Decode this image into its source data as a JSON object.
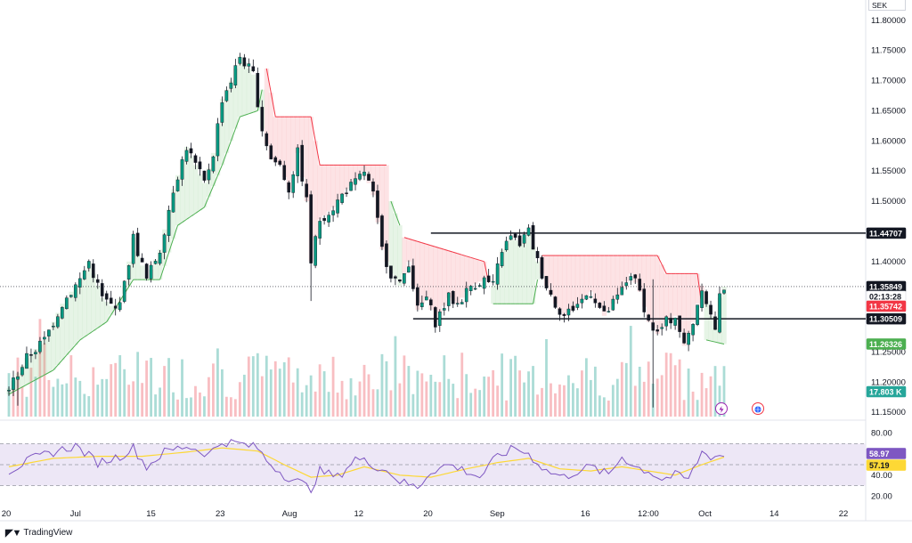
{
  "currency": "SEK",
  "brand": "TradingView",
  "brand_logo": "tradingview-logo-icon",
  "icons": [
    "lightning-icon",
    "globe-icon"
  ],
  "colors": {
    "bullish": "#089981",
    "bearish": "#f23645",
    "supertrend_up": "#4caf50",
    "supertrend_down": "#f23645",
    "rsi_line": "#7e57c2",
    "rsi_ma": "#fdd835",
    "rsi_band": "#ede7f6"
  },
  "price_labels": [
    {
      "id": "horizontal-line-upper",
      "text": "11.44707",
      "bg": "#131722",
      "fg": "#ffffff"
    },
    {
      "id": "last-price",
      "text": "11.35849",
      "bg": "#131722",
      "fg": "#ffffff"
    },
    {
      "id": "countdown",
      "text": "02:13:28",
      "bg": "#ffffff",
      "fg": "#131722"
    },
    {
      "id": "supertrend-down-value",
      "text": "11.35742",
      "bg": "#f23645",
      "fg": "#ffffff"
    },
    {
      "id": "horizontal-line-lower",
      "text": "11.30509",
      "bg": "#131722",
      "fg": "#ffffff"
    },
    {
      "id": "supertrend-up-value",
      "text": "11.26326",
      "bg": "#4caf50",
      "fg": "#ffffff"
    },
    {
      "id": "volume-value",
      "text": "17.803 K",
      "bg": "#26a69a",
      "fg": "#ffffff"
    },
    {
      "id": "rsi-value",
      "text": "58.97",
      "bg": "#7e57c2",
      "fg": "#ffffff"
    },
    {
      "id": "rsi-ma-value",
      "text": "57.19",
      "bg": "#fdd835",
      "fg": "#131722"
    }
  ],
  "chart_data": [
    {
      "type": "candlestick",
      "title": "",
      "y_axis_ticks": [
        "11.80000",
        "11.75000",
        "11.70000",
        "11.65000",
        "11.60000",
        "11.55000",
        "11.50000",
        "11.40000",
        "11.25000",
        "11.20000",
        "11.15000"
      ],
      "ylim": [
        11.14,
        11.81
      ],
      "x_axis_ticks": [
        "20",
        "Jul",
        "15",
        "23",
        "Aug",
        "12",
        "20",
        "Sep",
        "16",
        "12:00",
        "Oct",
        "14",
        "22"
      ],
      "horizontal_lines": [
        11.44707,
        11.30509
      ],
      "last_price": 11.35849,
      "supertrend_down": 11.35742,
      "supertrend_up": 11.26326,
      "path_anchors": [
        [
          0,
          11.19
        ],
        [
          4,
          11.24
        ],
        [
          8,
          11.27
        ],
        [
          12,
          11.33
        ],
        [
          16,
          11.37
        ],
        [
          18,
          11.4
        ],
        [
          21,
          11.34
        ],
        [
          24,
          11.32
        ],
        [
          26,
          11.36
        ],
        [
          28,
          11.44
        ],
        [
          31,
          11.37
        ],
        [
          34,
          11.42
        ],
        [
          37,
          11.52
        ],
        [
          40,
          11.59
        ],
        [
          42,
          11.56
        ],
        [
          44,
          11.53
        ],
        [
          46,
          11.58
        ],
        [
          48,
          11.67
        ],
        [
          50,
          11.7
        ],
        [
          52,
          11.74
        ],
        [
          54,
          11.72
        ],
        [
          55,
          11.71
        ],
        [
          57,
          11.62
        ],
        [
          59,
          11.57
        ],
        [
          61,
          11.56
        ],
        [
          63,
          11.52
        ],
        [
          65,
          11.58
        ],
        [
          67,
          11.5
        ],
        [
          68,
          11.4
        ],
        [
          70,
          11.47
        ],
        [
          73,
          11.49
        ],
        [
          76,
          11.52
        ],
        [
          78,
          11.53
        ],
        [
          80,
          11.55
        ],
        [
          82,
          11.51
        ],
        [
          84,
          11.42
        ],
        [
          86,
          11.38
        ],
        [
          88,
          11.36
        ],
        [
          90,
          11.4
        ],
        [
          92,
          11.32
        ],
        [
          94,
          11.34
        ],
        [
          96,
          11.3
        ],
        [
          99,
          11.34
        ],
        [
          101,
          11.33
        ],
        [
          104,
          11.36
        ],
        [
          107,
          11.37
        ],
        [
          109,
          11.36
        ],
        [
          111,
          11.42
        ],
        [
          113,
          11.44
        ],
        [
          115,
          11.43
        ],
        [
          117,
          11.45
        ],
        [
          119,
          11.4
        ],
        [
          121,
          11.36
        ],
        [
          123,
          11.33
        ],
        [
          125,
          11.31
        ],
        [
          128,
          11.33
        ],
        [
          131,
          11.35
        ],
        [
          134,
          11.31
        ],
        [
          137,
          11.34
        ],
        [
          140,
          11.38
        ],
        [
          142,
          11.35
        ],
        [
          144,
          11.3
        ],
        [
          146,
          11.28
        ],
        [
          148,
          11.3
        ],
        [
          150,
          11.31
        ],
        [
          152,
          11.26
        ],
        [
          154,
          11.3
        ],
        [
          156,
          11.36
        ],
        [
          158,
          11.31
        ],
        [
          159,
          11.29
        ],
        [
          160,
          11.34
        ],
        [
          161,
          11.3585
        ]
      ],
      "supertrend_path": [
        [
          0,
          11.18,
          "up"
        ],
        [
          10,
          11.22,
          "up"
        ],
        [
          16,
          11.27,
          "up"
        ],
        [
          22,
          11.3,
          "up"
        ],
        [
          28,
          11.37,
          "up"
        ],
        [
          34,
          11.37,
          "up"
        ],
        [
          38,
          11.46,
          "up"
        ],
        [
          44,
          11.49,
          "up"
        ],
        [
          48,
          11.56,
          "up"
        ],
        [
          52,
          11.64,
          "up"
        ],
        [
          56,
          11.65,
          "up"
        ],
        [
          58,
          11.72,
          "down"
        ],
        [
          60,
          11.64,
          "down"
        ],
        [
          68,
          11.64,
          "down"
        ],
        [
          70,
          11.56,
          "down"
        ],
        [
          85,
          11.56,
          "down"
        ],
        [
          86,
          11.5,
          "up"
        ],
        [
          89,
          11.44,
          "down"
        ],
        [
          107,
          11.4,
          "down"
        ],
        [
          109,
          11.33,
          "up"
        ],
        [
          118,
          11.33,
          "up"
        ],
        [
          120,
          11.41,
          "down"
        ],
        [
          146,
          11.41,
          "down"
        ],
        [
          148,
          11.38,
          "down"
        ],
        [
          155,
          11.38,
          "down"
        ],
        [
          157,
          11.27,
          "up"
        ],
        [
          161,
          11.26326,
          "up"
        ]
      ]
    },
    {
      "type": "bar",
      "title": "Volume",
      "last_value": "17.803 K"
    },
    {
      "type": "line",
      "title": "RSI",
      "y_axis_ticks": [
        "80.00",
        "40.00",
        "20.00"
      ],
      "ylim": [
        16,
        84
      ],
      "band": [
        30,
        70
      ],
      "middle": 50,
      "rsi_last": 58.97,
      "rsi_ma_last": 57.19,
      "rsi_path": [
        [
          0,
          44
        ],
        [
          5,
          55
        ],
        [
          10,
          62
        ],
        [
          15,
          68
        ],
        [
          20,
          52
        ],
        [
          25,
          58
        ],
        [
          28,
          66
        ],
        [
          31,
          48
        ],
        [
          35,
          62
        ],
        [
          40,
          68
        ],
        [
          45,
          60
        ],
        [
          48,
          72
        ],
        [
          52,
          70
        ],
        [
          56,
          66
        ],
        [
          58,
          54
        ],
        [
          62,
          40
        ],
        [
          65,
          34
        ],
        [
          68,
          27
        ],
        [
          70,
          44
        ],
        [
          74,
          38
        ],
        [
          78,
          56
        ],
        [
          82,
          50
        ],
        [
          86,
          42
        ],
        [
          88,
          34
        ],
        [
          92,
          28
        ],
        [
          95,
          44
        ],
        [
          99,
          50
        ],
        [
          103,
          44
        ],
        [
          106,
          38
        ],
        [
          110,
          58
        ],
        [
          114,
          66
        ],
        [
          117,
          60
        ],
        [
          121,
          44
        ],
        [
          125,
          38
        ],
        [
          128,
          44
        ],
        [
          131,
          48
        ],
        [
          135,
          40
        ],
        [
          138,
          58
        ],
        [
          141,
          48
        ],
        [
          144,
          44
        ],
        [
          147,
          36
        ],
        [
          150,
          40
        ],
        [
          153,
          36
        ],
        [
          156,
          62
        ],
        [
          158,
          58
        ],
        [
          161,
          58.97
        ]
      ],
      "rsi_ma_path": [
        [
          0,
          48
        ],
        [
          10,
          56
        ],
        [
          20,
          58
        ],
        [
          30,
          58
        ],
        [
          40,
          62
        ],
        [
          48,
          66
        ],
        [
          56,
          63
        ],
        [
          62,
          50
        ],
        [
          68,
          38
        ],
        [
          74,
          40
        ],
        [
          80,
          48
        ],
        [
          88,
          40
        ],
        [
          95,
          38
        ],
        [
          103,
          46
        ],
        [
          110,
          52
        ],
        [
          117,
          56
        ],
        [
          124,
          46
        ],
        [
          131,
          44
        ],
        [
          138,
          48
        ],
        [
          144,
          44
        ],
        [
          150,
          40
        ],
        [
          156,
          50
        ],
        [
          161,
          57.19
        ]
      ]
    }
  ]
}
